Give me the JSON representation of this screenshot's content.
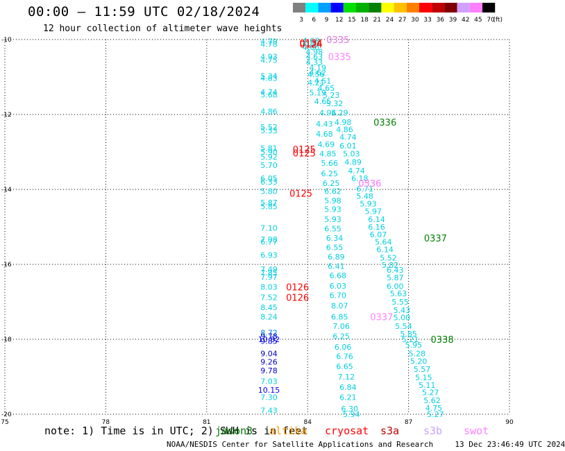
{
  "header": {
    "title": "00:00 – 11:59 UTC 02/18/2024",
    "subtitle": "12 hour collection of altimeter wave heights",
    "unit_label": "(ft)"
  },
  "colorbar": {
    "ticks": [
      "3",
      "6",
      "9",
      "12",
      "15",
      "18",
      "21",
      "24",
      "27",
      "30",
      "33",
      "36",
      "39",
      "42",
      "45",
      "70"
    ],
    "colors": [
      "#808080",
      "#00ffff",
      "#00a0ff",
      "#0000ff",
      "#00e000",
      "#00b000",
      "#008000",
      "#ffff00",
      "#ffc000",
      "#ff8000",
      "#ff0000",
      "#c00000",
      "#800000",
      "#d0a0ff",
      "#ff80ff",
      "#000000"
    ]
  },
  "footer": {
    "note": "note: 1) Time is in UTC; 2) SWH is in feet",
    "satellites": [
      {
        "name": "jason3",
        "color": "#008000"
      },
      {
        "name": "altika",
        "color": "#ff9900"
      },
      {
        "name": "cryosat",
        "color": "#ff0000"
      },
      {
        "name": "s3a",
        "color": "#c00000"
      },
      {
        "name": "s3b",
        "color": "#c8a0ff"
      },
      {
        "name": "swot",
        "color": "#ff80ff"
      }
    ],
    "credit": "NOAA/NESDIS Center for Satellite Applications and Research",
    "timestamp": "13 Dec 23:46:49 UTC 2024"
  },
  "chart_data": {
    "type": "scatter",
    "title": "00:00 – 11:59 UTC 02/18/2024",
    "subtitle": "12 hour collection of altimeter wave heights",
    "xlim": [
      75,
      90
    ],
    "ylim": [
      -20,
      -10
    ],
    "x_ticks": [
      "75",
      "78",
      "81",
      "84",
      "87",
      "90"
    ],
    "y_ticks": [
      "-10",
      "-12",
      "-14",
      "-16",
      "-18",
      "-20"
    ],
    "grid": "dotted",
    "series": [
      {
        "name": "swath1",
        "points": [
          {
            "x": 82.85,
            "y": -10.05,
            "v": "4.79"
          },
          {
            "x": 82.85,
            "y": -10.12,
            "v": "4.78"
          },
          {
            "x": 82.85,
            "y": -10.45,
            "v": "4.93"
          },
          {
            "x": 82.85,
            "y": -10.55,
            "v": "4.75"
          },
          {
            "x": 82.85,
            "y": -10.97,
            "v": "5.34"
          },
          {
            "x": 82.85,
            "y": -11.03,
            "v": "4.83"
          },
          {
            "x": 82.85,
            "y": -11.4,
            "v": "4.74"
          },
          {
            "x": 82.85,
            "y": -11.47,
            "v": "5.68"
          },
          {
            "x": 82.85,
            "y": -11.92,
            "v": "4.86"
          },
          {
            "x": 82.85,
            "y": -12.33,
            "v": "5.52"
          },
          {
            "x": 82.85,
            "y": -12.43,
            "v": "5.33"
          },
          {
            "x": 82.85,
            "y": -12.9,
            "v": "5.81"
          },
          {
            "x": 82.85,
            "y": -13.0,
            "v": "5.90"
          },
          {
            "x": 82.85,
            "y": -13.13,
            "v": "5.92"
          },
          {
            "x": 82.85,
            "y": -13.35,
            "v": "5.70"
          },
          {
            "x": 82.85,
            "y": -13.7,
            "v": "6.05"
          },
          {
            "x": 82.85,
            "y": -13.8,
            "v": "6.33"
          },
          {
            "x": 82.85,
            "y": -14.05,
            "v": "5.80"
          },
          {
            "x": 82.85,
            "y": -14.35,
            "v": "5.87"
          },
          {
            "x": 82.85,
            "y": -14.45,
            "v": "5.85"
          },
          {
            "x": 82.85,
            "y": -15.03,
            "v": "7.10"
          },
          {
            "x": 82.85,
            "y": -15.33,
            "v": "7.08"
          },
          {
            "x": 82.85,
            "y": -15.4,
            "v": "6.77"
          },
          {
            "x": 82.85,
            "y": -15.75,
            "v": "6.93"
          },
          {
            "x": 82.85,
            "y": -16.13,
            "v": "7.49"
          },
          {
            "x": 82.85,
            "y": -16.22,
            "v": "7.85"
          },
          {
            "x": 82.85,
            "y": -16.33,
            "v": "7.97"
          },
          {
            "x": 82.85,
            "y": -16.6,
            "v": "8.03"
          },
          {
            "x": 82.85,
            "y": -16.88,
            "v": "7.52"
          },
          {
            "x": 82.85,
            "y": -17.15,
            "v": "8.45"
          },
          {
            "x": 82.85,
            "y": -17.4,
            "v": "8.24"
          },
          {
            "x": 82.85,
            "y": -17.82,
            "v": "8.72"
          },
          {
            "x": 82.85,
            "y": -17.92,
            "v": "9.78"
          },
          {
            "x": 82.85,
            "y": -18.0,
            "v": "10.82"
          },
          {
            "x": 82.85,
            "y": -18.05,
            "v": "9.85"
          },
          {
            "x": 82.85,
            "y": -18.38,
            "v": "9.04"
          },
          {
            "x": 82.85,
            "y": -18.6,
            "v": "9.26"
          },
          {
            "x": 82.85,
            "y": -18.83,
            "v": "9.78"
          },
          {
            "x": 82.85,
            "y": -19.12,
            "v": "7.03"
          },
          {
            "x": 82.85,
            "y": -19.35,
            "v": "10.15"
          },
          {
            "x": 82.85,
            "y": -19.55,
            "v": "7.30"
          },
          {
            "x": 82.85,
            "y": -19.9,
            "v": "7.43"
          }
        ]
      },
      {
        "name": "swath2",
        "points": [
          {
            "x": 84.1,
            "y": -10.03,
            "v": "4.63"
          },
          {
            "x": 84.1,
            "y": -10.1,
            "v": "4.88"
          },
          {
            "x": 84.1,
            "y": -10.2,
            "v": "4.66"
          },
          {
            "x": 84.2,
            "y": -10.32,
            "v": "4.98"
          },
          {
            "x": 84.2,
            "y": -10.45,
            "v": "4.63"
          },
          {
            "x": 84.2,
            "y": -10.6,
            "v": "4.33"
          },
          {
            "x": 84.3,
            "y": -10.75,
            "v": "4.19"
          },
          {
            "x": 84.3,
            "y": -10.88,
            "v": "4.62"
          },
          {
            "x": 84.25,
            "y": -10.93,
            "v": "4.56"
          },
          {
            "x": 84.45,
            "y": -11.1,
            "v": "4.51"
          },
          {
            "x": 84.25,
            "y": -11.15,
            "v": "4.21"
          },
          {
            "x": 84.55,
            "y": -11.3,
            "v": "4.65"
          },
          {
            "x": 84.3,
            "y": -11.42,
            "v": "5.19"
          },
          {
            "x": 84.7,
            "y": -11.48,
            "v": "5.23"
          },
          {
            "x": 84.45,
            "y": -11.65,
            "v": "4.65"
          },
          {
            "x": 84.8,
            "y": -11.7,
            "v": "5.32"
          },
          {
            "x": 84.6,
            "y": -11.95,
            "v": "4.94"
          },
          {
            "x": 84.95,
            "y": -11.95,
            "v": "5.29"
          },
          {
            "x": 84.5,
            "y": -12.25,
            "v": "4.43"
          },
          {
            "x": 85.05,
            "y": -12.2,
            "v": "4.98"
          },
          {
            "x": 85.1,
            "y": -12.4,
            "v": "4.86"
          },
          {
            "x": 84.5,
            "y": -12.52,
            "v": "4.68"
          },
          {
            "x": 85.2,
            "y": -12.6,
            "v": "4.74"
          },
          {
            "x": 84.55,
            "y": -12.8,
            "v": "4.69"
          },
          {
            "x": 85.2,
            "y": -12.83,
            "v": "6.01"
          },
          {
            "x": 84.6,
            "y": -13.05,
            "v": "4.85"
          },
          {
            "x": 85.3,
            "y": -13.05,
            "v": "5.03"
          },
          {
            "x": 84.65,
            "y": -13.3,
            "v": "5.66"
          },
          {
            "x": 85.35,
            "y": -13.27,
            "v": "4.89"
          },
          {
            "x": 85.45,
            "y": -13.5,
            "v": "4.74"
          },
          {
            "x": 84.65,
            "y": -13.57,
            "v": "6.25"
          },
          {
            "x": 85.55,
            "y": -13.7,
            "v": "6.18"
          },
          {
            "x": 84.7,
            "y": -13.83,
            "v": "6.25"
          },
          {
            "x": 85.7,
            "y": -13.98,
            "v": "6.71"
          },
          {
            "x": 84.75,
            "y": -14.05,
            "v": "6.62"
          },
          {
            "x": 85.7,
            "y": -14.18,
            "v": "5.48"
          },
          {
            "x": 84.75,
            "y": -14.3,
            "v": "5.98"
          },
          {
            "x": 85.8,
            "y": -14.38,
            "v": "5.93"
          },
          {
            "x": 84.75,
            "y": -14.53,
            "v": "5.93"
          },
          {
            "x": 85.95,
            "y": -14.58,
            "v": "5.97"
          },
          {
            "x": 84.75,
            "y": -14.8,
            "v": "5.93"
          },
          {
            "x": 86.05,
            "y": -14.8,
            "v": "6.14"
          },
          {
            "x": 84.75,
            "y": -15.05,
            "v": "6.55"
          },
          {
            "x": 86.05,
            "y": -15.0,
            "v": "6.16"
          },
          {
            "x": 86.1,
            "y": -15.2,
            "v": "6.07"
          },
          {
            "x": 84.8,
            "y": -15.3,
            "v": "6.34"
          },
          {
            "x": 86.25,
            "y": -15.4,
            "v": "5.64"
          },
          {
            "x": 84.8,
            "y": -15.55,
            "v": "6.55"
          },
          {
            "x": 86.3,
            "y": -15.6,
            "v": "6.14"
          },
          {
            "x": 84.85,
            "y": -15.8,
            "v": "6.89"
          },
          {
            "x": 86.4,
            "y": -15.82,
            "v": "5.52"
          },
          {
            "x": 84.85,
            "y": -16.05,
            "v": "6.41"
          },
          {
            "x": 86.45,
            "y": -16.02,
            "v": "5.82"
          },
          {
            "x": 86.6,
            "y": -16.15,
            "v": "6.43"
          },
          {
            "x": 84.9,
            "y": -16.3,
            "v": "6.68"
          },
          {
            "x": 86.6,
            "y": -16.35,
            "v": "5.87"
          },
          {
            "x": 84.9,
            "y": -16.57,
            "v": "6.03"
          },
          {
            "x": 86.6,
            "y": -16.58,
            "v": "6.00"
          },
          {
            "x": 86.7,
            "y": -16.78,
            "v": "5.63"
          },
          {
            "x": 84.9,
            "y": -16.82,
            "v": "6.70"
          },
          {
            "x": 86.75,
            "y": -17.0,
            "v": "5.55"
          },
          {
            "x": 84.95,
            "y": -17.1,
            "v": "8.07"
          },
          {
            "x": 86.8,
            "y": -17.22,
            "v": "5.43"
          },
          {
            "x": 84.95,
            "y": -17.4,
            "v": "6.85"
          },
          {
            "x": 86.8,
            "y": -17.42,
            "v": "5.00"
          },
          {
            "x": 85.0,
            "y": -17.65,
            "v": "7.06"
          },
          {
            "x": 86.85,
            "y": -17.65,
            "v": "5.54"
          },
          {
            "x": 87.0,
            "y": -17.85,
            "v": "5.85"
          },
          {
            "x": 85.0,
            "y": -17.92,
            "v": "6.25"
          },
          {
            "x": 87.05,
            "y": -18.0,
            "v": "5.21"
          },
          {
            "x": 85.05,
            "y": -18.2,
            "v": "6.06"
          },
          {
            "x": 87.15,
            "y": -18.15,
            "v": "5.95"
          },
          {
            "x": 87.25,
            "y": -18.38,
            "v": "5.28"
          },
          {
            "x": 85.1,
            "y": -18.45,
            "v": "6.76"
          },
          {
            "x": 87.3,
            "y": -18.58,
            "v": "5.20"
          },
          {
            "x": 85.1,
            "y": -18.72,
            "v": "6.65"
          },
          {
            "x": 87.4,
            "y": -18.8,
            "v": "5.57"
          },
          {
            "x": 85.15,
            "y": -19.0,
            "v": "7.12"
          },
          {
            "x": 87.45,
            "y": -19.02,
            "v": "5.15"
          },
          {
            "x": 85.2,
            "y": -19.28,
            "v": "6.84"
          },
          {
            "x": 87.55,
            "y": -19.22,
            "v": "5.11"
          },
          {
            "x": 87.65,
            "y": -19.42,
            "v": "5.27"
          },
          {
            "x": 85.2,
            "y": -19.55,
            "v": "6.21"
          },
          {
            "x": 87.7,
            "y": -19.63,
            "v": "5.62"
          },
          {
            "x": 85.25,
            "y": -19.85,
            "v": "6.30"
          },
          {
            "x": 87.75,
            "y": -19.83,
            "v": "4.75"
          },
          {
            "x": 85.3,
            "y": -20.0,
            "v": "5.94"
          },
          {
            "x": 87.8,
            "y": -20.0,
            "v": "5.27"
          }
        ]
      }
    ],
    "time_labels": [
      {
        "x": 84.1,
        "y": -10.08,
        "v": "0134",
        "sat": "cryosat"
      },
      {
        "x": 84.1,
        "y": -10.12,
        "v": "0124",
        "sat": "cryosat"
      },
      {
        "x": 84.9,
        "y": -10.0,
        "v": "0335",
        "sat": "jason3"
      },
      {
        "x": 84.9,
        "y": -10.0,
        "v": "0335",
        "sat": "swot"
      },
      {
        "x": 84.95,
        "y": -10.45,
        "v": "0335",
        "sat": "swot"
      },
      {
        "x": 86.3,
        "y": -12.2,
        "v": "0336",
        "sat": "jason3"
      },
      {
        "x": 83.9,
        "y": -12.93,
        "v": "0125",
        "sat": "cryosat"
      },
      {
        "x": 83.9,
        "y": -13.03,
        "v": "0125",
        "sat": "cryosat"
      },
      {
        "x": 85.85,
        "y": -13.83,
        "v": "0536",
        "sat": "swot"
      },
      {
        "x": 85.85,
        "y": -13.83,
        "v": "0336",
        "sat": "swot"
      },
      {
        "x": 83.8,
        "y": -14.1,
        "v": "0125",
        "sat": "cryosat"
      },
      {
        "x": 87.8,
        "y": -15.3,
        "v": "0337",
        "sat": "jason3"
      },
      {
        "x": 83.7,
        "y": -16.6,
        "v": "0126",
        "sat": "cryosat"
      },
      {
        "x": 83.7,
        "y": -16.88,
        "v": "0126",
        "sat": "cryosat"
      },
      {
        "x": 86.2,
        "y": -17.4,
        "v": "0337",
        "sat": "swot"
      },
      {
        "x": 88.0,
        "y": -18.0,
        "v": "0338",
        "sat": "jason3"
      }
    ],
    "units": "ft"
  }
}
